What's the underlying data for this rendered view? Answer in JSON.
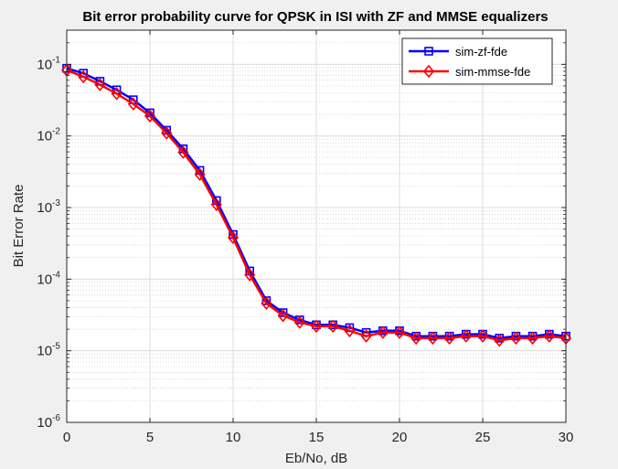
{
  "chart_data": {
    "type": "line",
    "title": "Bit error probability curve for QPSK in ISI with ZF and MMSE equalizers",
    "xlabel": "Eb/No, dB",
    "ylabel": "Bit Error Rate",
    "xlim": [
      0,
      30
    ],
    "ylim": [
      1e-06,
      0.3
    ],
    "yscale": "log",
    "grid": true,
    "minor_grid": true,
    "legend_position": "top-right",
    "x_ticks": [
      0,
      5,
      10,
      15,
      20,
      25,
      30
    ],
    "x_tick_labels": [
      "0",
      "5",
      "10",
      "15",
      "20",
      "25",
      "30"
    ],
    "y_ticks": [
      1e-06,
      1e-05,
      0.0001,
      0.001,
      0.01,
      0.1
    ],
    "y_tick_bases": [
      "10",
      "10",
      "10",
      "10",
      "10",
      "10"
    ],
    "y_tick_exponents": [
      "-6",
      "-5",
      "-4",
      "-3",
      "-2",
      "-1"
    ],
    "x": [
      0,
      1,
      2,
      3,
      4,
      5,
      6,
      7,
      8,
      9,
      10,
      11,
      12,
      13,
      14,
      15,
      16,
      17,
      18,
      19,
      20,
      21,
      22,
      23,
      24,
      25,
      26,
      27,
      28,
      29,
      30
    ],
    "series": [
      {
        "name": "sim-zf-fde",
        "color": "#0000ff",
        "marker": "square",
        "values": [
          0.088,
          0.075,
          0.058,
          0.044,
          0.032,
          0.021,
          0.012,
          0.0066,
          0.0033,
          0.00125,
          0.00042,
          0.00013,
          5e-05,
          3.4e-05,
          2.7e-05,
          2.3e-05,
          2.3e-05,
          2.1e-05,
          1.8e-05,
          1.9e-05,
          1.9e-05,
          1.6e-05,
          1.6e-05,
          1.6e-05,
          1.7e-05,
          1.7e-05,
          1.5e-05,
          1.6e-05,
          1.6e-05,
          1.7e-05,
          1.6e-05
        ]
      },
      {
        "name": "sim-mmse-fde",
        "color": "#ff0000",
        "marker": "diamond",
        "values": [
          0.083,
          0.067,
          0.052,
          0.039,
          0.028,
          0.019,
          0.011,
          0.0059,
          0.0029,
          0.0011,
          0.00038,
          0.000115,
          4.6e-05,
          3.1e-05,
          2.5e-05,
          2.2e-05,
          2.2e-05,
          1.9e-05,
          1.6e-05,
          1.8e-05,
          1.8e-05,
          1.5e-05,
          1.5e-05,
          1.5e-05,
          1.6e-05,
          1.6e-05,
          1.4e-05,
          1.5e-05,
          1.5e-05,
          1.6e-05,
          1.5e-05
        ]
      }
    ]
  }
}
